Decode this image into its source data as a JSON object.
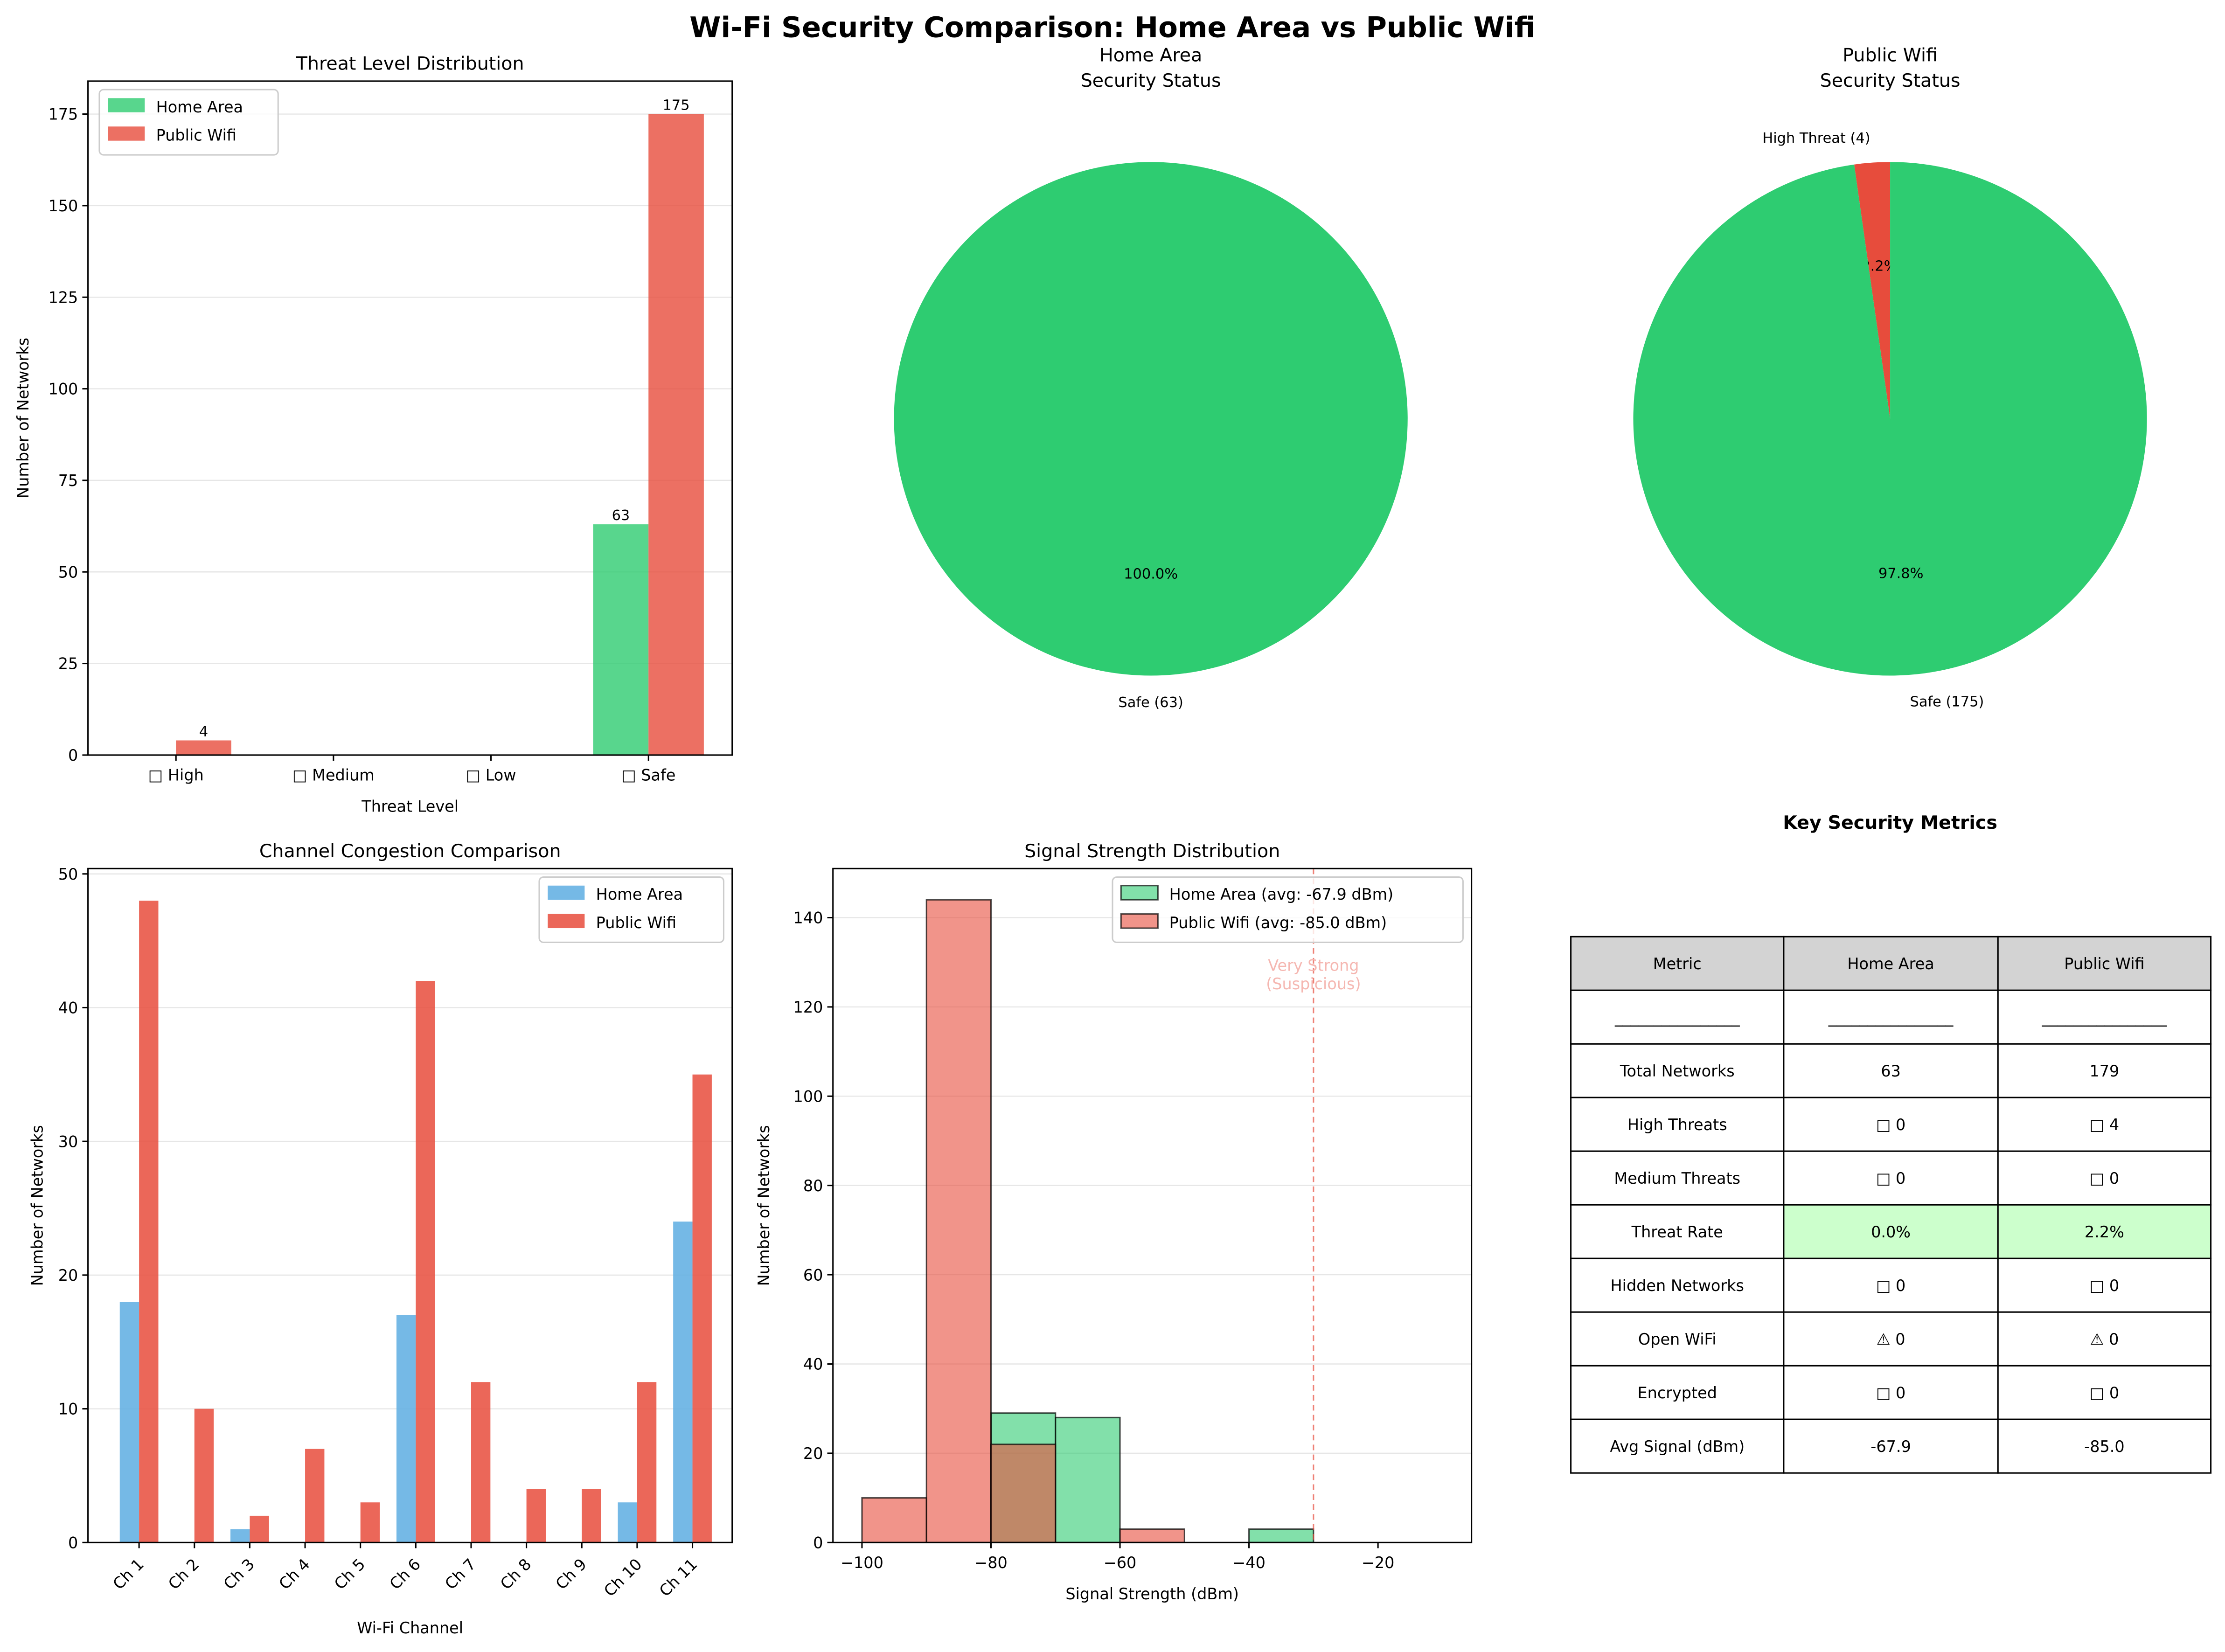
{
  "title": "Wi-Fi Security Comparison: Home Area vs Public Wifi",
  "colors": {
    "home": "#2ECC71",
    "public": "#E74C3C",
    "home_channel": "#5DADE2",
    "threat_rate_cell": "#CCFFCC",
    "header_cell": "#D3D3D3"
  },
  "chart_data": [
    {
      "type": "bar",
      "title": "Threat Level Distribution",
      "xlabel": "Threat Level",
      "ylabel": "Number of Networks",
      "categories": [
        "□ High",
        "□ Medium",
        "□ Low",
        "□ Safe"
      ],
      "series": [
        {
          "name": "Home Area",
          "values": [
            0,
            0,
            0,
            63
          ]
        },
        {
          "name": "Public Wifi",
          "values": [
            4,
            0,
            0,
            175
          ]
        }
      ],
      "data_labels": [
        {
          "series": 1,
          "index": 0,
          "text": "4"
        },
        {
          "series": 0,
          "index": 3,
          "text": "63"
        },
        {
          "series": 1,
          "index": 3,
          "text": "175"
        }
      ],
      "yticks": [
        0,
        25,
        50,
        75,
        100,
        125,
        150,
        175
      ],
      "ylim": [
        0,
        184
      ],
      "grid": "y",
      "legend": "top-left"
    },
    {
      "type": "pie",
      "title": "Home Area\nSecurity Status",
      "slices": [
        {
          "label": "Safe (63)",
          "value": 63,
          "pct": "100.0%",
          "color": "#2ECC71"
        }
      ],
      "startangle": 90
    },
    {
      "type": "pie",
      "title": "Public Wifi\nSecurity Status",
      "slices": [
        {
          "label": "High Threat (4)",
          "value": 4,
          "pct": "2.2%",
          "color": "#E74C3C"
        },
        {
          "label": "Safe (175)",
          "value": 175,
          "pct": "97.8%",
          "color": "#2ECC71"
        }
      ],
      "startangle": 90
    },
    {
      "type": "bar",
      "title": "Channel Congestion Comparison",
      "xlabel": "Wi-Fi Channel",
      "ylabel": "Number of Networks",
      "categories": [
        "Ch 1",
        "Ch 2",
        "Ch 3",
        "Ch 4",
        "Ch 5",
        "Ch 6",
        "Ch 7",
        "Ch 8",
        "Ch 9",
        "Ch 10",
        "Ch 11"
      ],
      "series": [
        {
          "name": "Home Area",
          "values": [
            18,
            0,
            1,
            0,
            0,
            17,
            0,
            0,
            0,
            3,
            24
          ]
        },
        {
          "name": "Public Wifi",
          "values": [
            48,
            10,
            2,
            7,
            3,
            42,
            12,
            4,
            4,
            12,
            35
          ]
        }
      ],
      "yticks": [
        0,
        10,
        20,
        30,
        40,
        50
      ],
      "ylim": [
        0,
        50.4
      ],
      "grid": "y",
      "legend": "top-right"
    },
    {
      "type": "histogram",
      "title": "Signal Strength Distribution",
      "xlabel": "Signal Strength (dBm)",
      "ylabel": "Number of Networks",
      "bin_edges": [
        -100,
        -90,
        -80,
        -70,
        -60,
        -50,
        -40,
        -30,
        -20,
        -10
      ],
      "series": [
        {
          "name": "Home Area (avg: -67.9 dBm)",
          "counts": [
            0,
            0,
            29,
            28,
            0,
            0,
            3,
            0,
            0
          ]
        },
        {
          "name": "Public Wifi (avg: -85.0 dBm)",
          "counts": [
            10,
            144,
            22,
            0,
            3,
            0,
            0,
            0,
            0
          ]
        }
      ],
      "xticks": [
        -100,
        -80,
        -60,
        -40,
        -20
      ],
      "yticks": [
        0,
        20,
        40,
        60,
        80,
        100,
        120,
        140
      ],
      "xlim": [
        -104.5,
        -5.5
      ],
      "ylim": [
        0,
        151
      ],
      "threshold": {
        "x": -30,
        "label": "Very Strong\n(Suspicious)"
      },
      "grid": "y",
      "legend": "top-right"
    },
    {
      "type": "table",
      "title": "Key Security Metrics",
      "columns": [
        "Metric",
        "Home Area",
        "Public Wifi"
      ],
      "rows": [
        [
          "________________",
          "________________",
          "________________"
        ],
        [
          "Total Networks",
          "63",
          "179"
        ],
        [
          "High Threats",
          "□ 0",
          "□ 4"
        ],
        [
          "Medium Threats",
          "□ 0",
          "□ 0"
        ],
        [
          "Threat Rate",
          "0.0%",
          "2.2%"
        ],
        [
          "Hidden Networks",
          "□ 0",
          "□ 0"
        ],
        [
          "Open WiFi",
          "⚠ 0",
          "⚠ 0"
        ],
        [
          "Encrypted",
          "□ 0",
          "□ 0"
        ],
        [
          "Avg Signal (dBm)",
          "-67.9",
          "-85.0"
        ]
      ]
    }
  ]
}
